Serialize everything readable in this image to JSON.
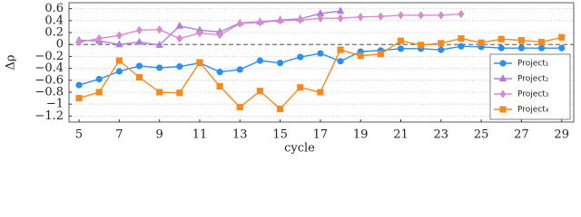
{
  "chart_data": {
    "type": "line",
    "x_label": "cycle",
    "y_label": "Δρ",
    "x": [
      5,
      6,
      7,
      8,
      9,
      10,
      11,
      12,
      13,
      14,
      15,
      16,
      17,
      18,
      19,
      20,
      21,
      22,
      23,
      24,
      25,
      26,
      27,
      28,
      29
    ],
    "xlim": [
      4.5,
      29.6
    ],
    "xticks": [
      5,
      7,
      9,
      11,
      13,
      15,
      17,
      19,
      21,
      23,
      25,
      27,
      29
    ],
    "ylim": [
      -1.3,
      0.7
    ],
    "yticks": [
      0.6,
      0.4,
      0.2,
      0,
      {
        "value": -0.2,
        "label": "−0.2"
      },
      {
        "value": -0.4,
        "label": "−0.4"
      },
      {
        "value": -0.6,
        "label": "−0.6"
      },
      {
        "value": -0.8,
        "label": "−0.8"
      },
      {
        "value": -1,
        "label": "−1"
      },
      {
        "value": -1.2,
        "label": "−1.2"
      }
    ],
    "grid": true,
    "legend": "right",
    "series": [
      {
        "name": "Project₁",
        "color": "#2b8ff0",
        "marker": "circle",
        "values": [
          -0.68,
          -0.58,
          -0.45,
          -0.36,
          -0.39,
          -0.37,
          -0.31,
          -0.46,
          -0.42,
          -0.27,
          -0.31,
          -0.21,
          -0.15,
          -0.28,
          -0.12,
          -0.1,
          -0.07,
          -0.07,
          -0.09,
          -0.03,
          -0.04,
          -0.06,
          -0.06,
          -0.06,
          -0.06
        ]
      },
      {
        "name": "Project₂",
        "color": "#b07be0",
        "marker": "triangle",
        "values": [
          0.07,
          0.06,
          0,
          0.04,
          -0.01,
          0.31,
          0.24,
          0.21,
          0.36,
          0.38,
          0.41,
          0.43,
          0.52,
          0.56,
          null,
          null,
          null,
          null,
          null,
          null,
          null,
          null,
          null,
          null,
          null
        ]
      },
      {
        "name": "Project₃",
        "color": "#d98ccc",
        "marker": "diamond",
        "values": [
          0.04,
          0.1,
          0.15,
          0.24,
          0.25,
          0.1,
          0.19,
          0.16,
          0.35,
          0.37,
          0.4,
          0.41,
          0.44,
          0.44,
          0.46,
          0.47,
          0.49,
          0.49,
          0.49,
          0.51,
          null,
          null,
          null,
          null,
          null
        ]
      },
      {
        "name": "Project₄",
        "color": "#f58a1f",
        "marker": "square",
        "values": [
          -0.9,
          -0.8,
          -0.27,
          -0.55,
          -0.8,
          -0.81,
          -0.3,
          -0.7,
          -1.05,
          -0.78,
          -1.08,
          -0.72,
          -0.8,
          -0.09,
          -0.19,
          -0.16,
          0.06,
          -0.01,
          0.02,
          0.1,
          0.03,
          0.09,
          0.07,
          0.04,
          0.12
        ]
      }
    ]
  }
}
